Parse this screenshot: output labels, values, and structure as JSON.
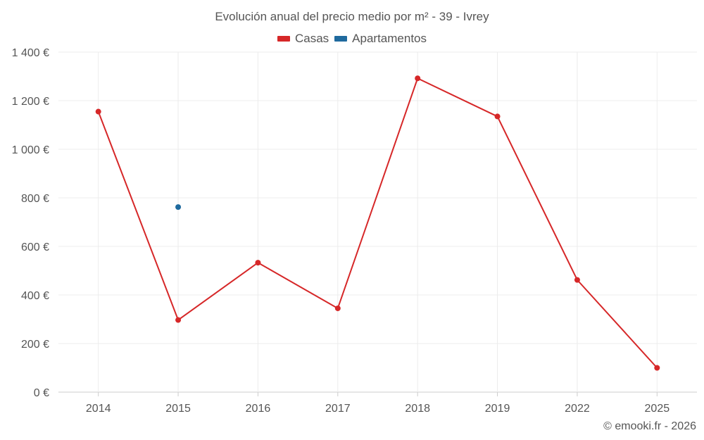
{
  "chart_data": {
    "type": "line",
    "title": "Evolución anual del precio medio por m² - 39 - Ivrey",
    "categories": [
      "2014",
      "2015",
      "2016",
      "2017",
      "2018",
      "2019",
      "2022",
      "2025"
    ],
    "series": [
      {
        "name": "Casas",
        "color": "#d62728",
        "values": [
          1155,
          297,
          533,
          345,
          1292,
          1135,
          462,
          100
        ]
      },
      {
        "name": "Apartamentos",
        "color": "#1f6a9e",
        "values": [
          null,
          762,
          null,
          null,
          null,
          null,
          null,
          null
        ]
      }
    ],
    "y_ticks": [
      0,
      200,
      400,
      600,
      800,
      1000,
      1200,
      1400
    ],
    "y_tick_labels": [
      "0 €",
      "200 €",
      "400 €",
      "600 €",
      "800 €",
      "1 000 €",
      "1 200 €",
      "1 400 €"
    ],
    "ylim": [
      0,
      1400
    ],
    "grid": true,
    "legend_position": "top-center"
  },
  "credit": "© emooki.fr - 2026"
}
